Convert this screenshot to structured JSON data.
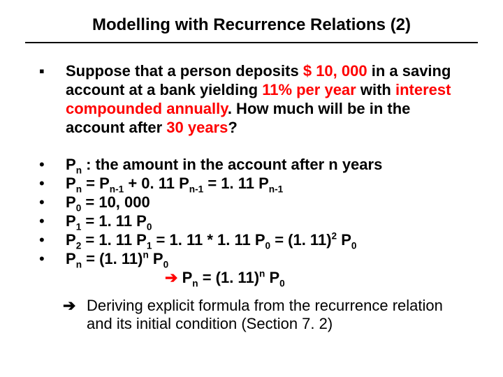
{
  "title": "Modelling with Recurrence Relations (2)",
  "intro": {
    "t1": "Suppose that a person deposits ",
    "amount": "$ 10, 000",
    "t2": " in a saving account at a bank yielding ",
    "rate": "11% per year",
    "t3": " with ",
    "comp": "interest compounded annually",
    "t4": ". How much will be in the account after ",
    "years": "30 years",
    "t5": "?"
  },
  "b1": {
    "a": "P",
    "b": " : the amount in the account after n years"
  },
  "b2": {
    "a": "P",
    "b": " = P",
    "c": " + 0. 11 P",
    "d": " = 1. 11 P"
  },
  "b3": {
    "a": "P",
    "b": " = 10, 000"
  },
  "b4": {
    "a": "P",
    "b": " = 1. 11 P"
  },
  "b5": {
    "a": "P",
    "b": " = 1. 11 P",
    "c": " = 1. 11 * 1. 11 P",
    "d": " = (1. 11)",
    "e": " P"
  },
  "b6": {
    "a": "P",
    "b": " = (1. 11)",
    "c": " P"
  },
  "concl": {
    "a": "P",
    "b": " = (1. 11)",
    "c": " P"
  },
  "deriv": "Deriving explicit formula from the recurrence relation and its initial condition (Section 7. 2)",
  "sub": {
    "n": "n",
    "nm1": "n-1",
    "z": "0",
    "one": "1",
    "two": "2"
  },
  "sup": {
    "two": "2",
    "n": "n"
  },
  "arrow": "➔",
  "square": "▪",
  "dot": "•"
}
